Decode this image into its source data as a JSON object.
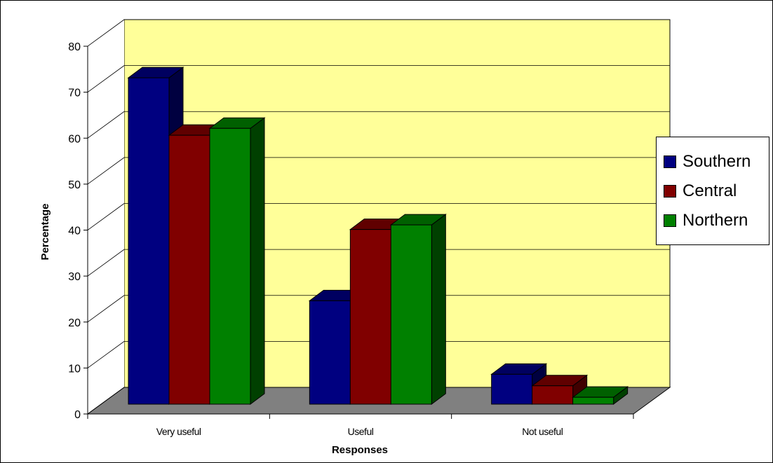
{
  "chart_data": {
    "type": "bar",
    "title": "",
    "xlabel": "Responses",
    "ylabel": "Percentage",
    "ylim": [
      0,
      80
    ],
    "yticks": [
      0,
      10,
      20,
      30,
      40,
      50,
      60,
      70,
      80
    ],
    "categories": [
      "Very useful",
      "Useful",
      "Not useful"
    ],
    "series": [
      {
        "name": "Southern",
        "color": "#000080",
        "values": [
          71,
          22.5,
          6.5
        ]
      },
      {
        "name": "Central",
        "color": "#800000",
        "values": [
          58.5,
          38,
          4
        ]
      },
      {
        "name": "Northern",
        "color": "#008000",
        "values": [
          60,
          39,
          1.5
        ]
      }
    ],
    "legend_position": "right",
    "grid": true,
    "style": "3d",
    "wall_color": "#ffff99",
    "floor_color": "#808080"
  }
}
